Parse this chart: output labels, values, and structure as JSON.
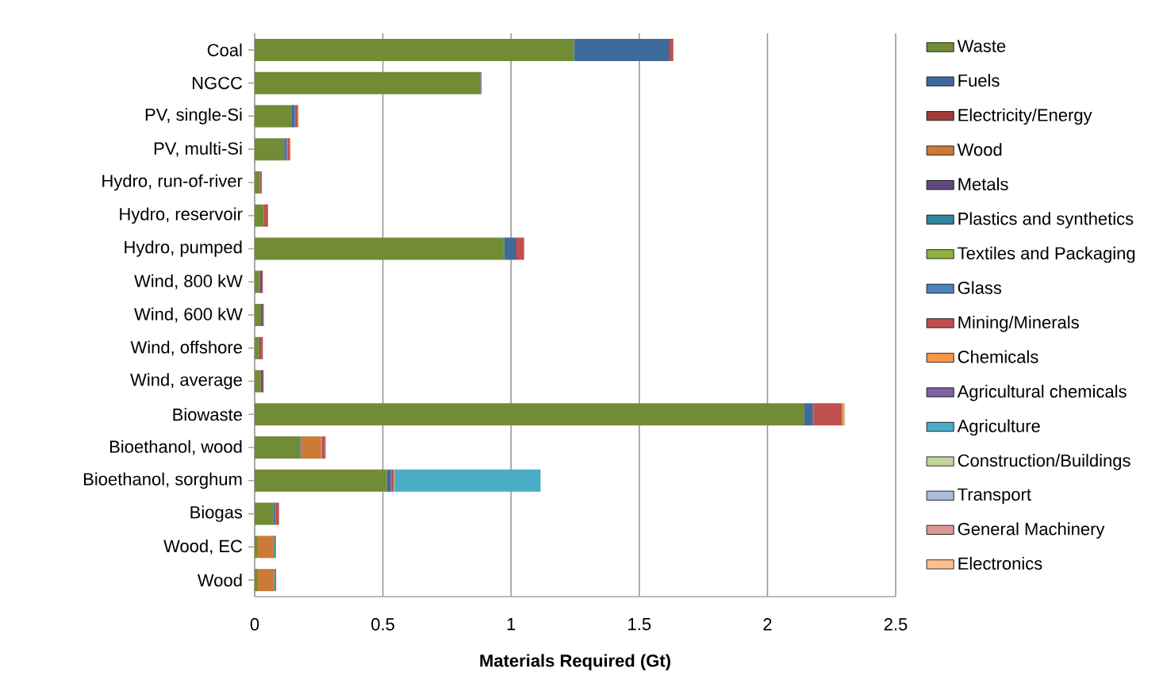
{
  "chart_data": {
    "type": "bar",
    "orientation": "horizontal",
    "stacked": true,
    "xlabel": "Materials Required (Gt)",
    "categories": [
      "Coal",
      "NGCC",
      "PV, single-Si",
      "PV, multi-Si",
      "Hydro, run-of-river",
      "Hydro, reservoir",
      "Hydro, pumped",
      "Wind, 800 kW",
      "Wind, 600 kW",
      "Wind, offshore",
      "Wind, average",
      "Biowaste",
      "Bioethanol, wood",
      "Bioethanol, sorghum",
      "Biogas",
      "Wood, EC",
      "Wood"
    ],
    "xlim": [
      0,
      2.5
    ],
    "xticks": [
      0,
      0.5,
      1,
      1.5,
      2,
      2.5
    ],
    "grid": "x",
    "legend": "right",
    "series": [
      {
        "name": "Waste",
        "color": "#718c35",
        "values": [
          1.245,
          0.88,
          0.143,
          0.115,
          0.02,
          0.035,
          0.974,
          0.021,
          0.025,
          0.018,
          0.024,
          2.144,
          0.177,
          0.515,
          0.072,
          0.012,
          0.012
        ]
      },
      {
        "name": "Fuels",
        "color": "#3f6a9c",
        "values": [
          0.37,
          0.002,
          0.009,
          0.008,
          0,
          0,
          0.044,
          0,
          0,
          0,
          0,
          0.032,
          0.004,
          0.015,
          0.008,
          0,
          0
        ]
      },
      {
        "name": "Electricity/Energy",
        "color": "#a23a3a",
        "values": [
          0.003,
          0,
          0,
          0,
          0,
          0,
          0.003,
          0,
          0,
          0,
          0,
          0,
          0,
          0,
          0,
          0,
          0
        ]
      },
      {
        "name": "Wood",
        "color": "#cc7a38",
        "values": [
          0,
          0,
          0,
          0,
          0,
          0,
          0,
          0,
          0,
          0,
          0,
          0,
          0.078,
          0,
          0,
          0.063,
          0.064
        ]
      },
      {
        "name": "Metals",
        "color": "#604a7b",
        "values": [
          0,
          0,
          0.003,
          0.003,
          0.002,
          0,
          0,
          0.007,
          0.007,
          0.004,
          0.007,
          0.003,
          0,
          0.003,
          0.002,
          0,
          0
        ]
      },
      {
        "name": "Plastics and synthetics",
        "color": "#31859c",
        "values": [
          0,
          0,
          0,
          0,
          0,
          0,
          0,
          0,
          0,
          0,
          0,
          0,
          0,
          0,
          0,
          0.005,
          0.005
        ]
      },
      {
        "name": "Textiles and Packaging",
        "color": "#8cb13f",
        "values": [
          0,
          0,
          0,
          0,
          0,
          0,
          0,
          0,
          0,
          0,
          0,
          0,
          0,
          0,
          0,
          0,
          0
        ]
      },
      {
        "name": "Glass",
        "color": "#4f81bd",
        "values": [
          0,
          0,
          0.003,
          0.003,
          0,
          0,
          0,
          0,
          0,
          0,
          0,
          0,
          0.003,
          0,
          0,
          0,
          0
        ]
      },
      {
        "name": "Mining/Minerals",
        "color": "#c0504d",
        "values": [
          0.015,
          0.003,
          0.01,
          0.008,
          0.006,
          0.017,
          0.03,
          0.004,
          0.004,
          0.01,
          0.004,
          0.112,
          0.012,
          0.009,
          0.013,
          0.003,
          0.003
        ]
      },
      {
        "name": "Chemicals",
        "color": "#f79646",
        "values": [
          0,
          0,
          0.003,
          0.003,
          0,
          0,
          0,
          0,
          0,
          0,
          0,
          0.008,
          0,
          0.003,
          0,
          0,
          0
        ]
      },
      {
        "name": "Agricultural chemicals",
        "color": "#8064a2",
        "values": [
          0,
          0,
          0,
          0,
          0,
          0,
          0,
          0,
          0,
          0,
          0,
          0,
          0.003,
          0,
          0,
          0,
          0
        ]
      },
      {
        "name": "Agriculture",
        "color": "#4bacc6",
        "values": [
          0,
          0,
          0,
          0,
          0,
          0,
          0,
          0,
          0,
          0,
          0,
          0,
          0,
          0.57,
          0,
          0,
          0
        ]
      },
      {
        "name": "Construction/Buildings",
        "color": "#c3d69b",
        "values": [
          0,
          0,
          0,
          0,
          0,
          0,
          0,
          0,
          0,
          0,
          0,
          0.002,
          0,
          0,
          0,
          0,
          0
        ]
      },
      {
        "name": "Transport",
        "color": "#a9bcdb",
        "values": [
          0,
          0,
          0,
          0,
          0,
          0,
          0,
          0,
          0,
          0,
          0,
          0.002,
          0,
          0,
          0,
          0,
          0
        ]
      },
      {
        "name": "General Machinery",
        "color": "#d99694",
        "values": [
          0,
          0,
          0,
          0,
          0,
          0,
          0,
          0,
          0,
          0,
          0,
          0,
          0,
          0,
          0,
          0,
          0
        ]
      },
      {
        "name": "Electronics",
        "color": "#fac090",
        "values": [
          0,
          0,
          0,
          0,
          0,
          0,
          0,
          0,
          0,
          0,
          0,
          0,
          0,
          0,
          0,
          0,
          0
        ]
      }
    ]
  }
}
